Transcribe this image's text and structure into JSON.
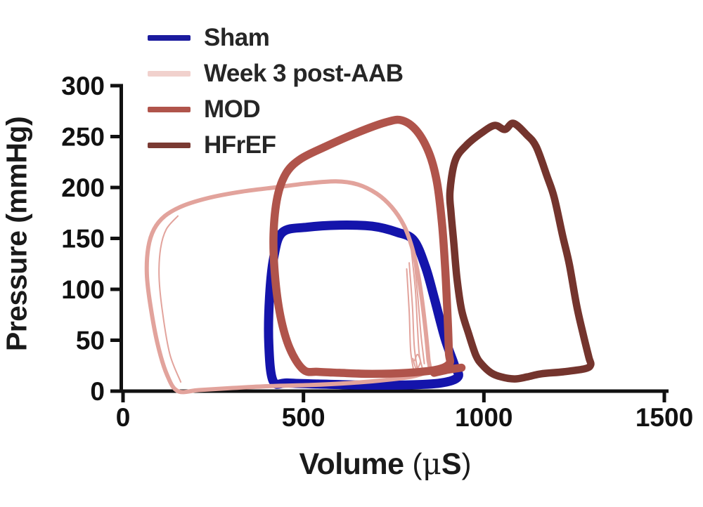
{
  "figure": {
    "background": "#ffffff",
    "text_color": "#1a1a1a",
    "axis_color": "#111111"
  },
  "labels": {
    "ylabel": "Pressure (mmHg)",
    "xlabel_name": "Volume",
    "xlabel_open": "(",
    "xlabel_mu": "μ",
    "xlabel_s": "S",
    "xlabel_close": ")"
  },
  "legend": {
    "position": "top-left",
    "items": [
      {
        "label": "Sham",
        "color": "#1b1b9e"
      },
      {
        "label": "Week 3 post-AAB",
        "color": "#f1d1cd"
      },
      {
        "label": "MOD",
        "color": "#b0544b"
      },
      {
        "label": "HFrEF",
        "color": "#7a3a33"
      }
    ]
  },
  "chart_data": {
    "type": "line",
    "subtype": "pressure-volume-loops",
    "title": "",
    "xlabel": "Volume (μS)",
    "ylabel": "Pressure (mmHg)",
    "xlim": [
      0,
      1500
    ],
    "ylim": [
      0,
      300
    ],
    "x_ticks": [
      0,
      500,
      1000,
      1500
    ],
    "y_ticks": [
      0,
      50,
      100,
      150,
      200,
      250,
      300
    ],
    "grid": false,
    "legend_position": "top-left",
    "series": [
      {
        "name": "Sham",
        "color": "#1414ab",
        "stroke_width": 13,
        "closed": true,
        "points": [
          [
            416,
            10
          ],
          [
            404,
            46
          ],
          [
            406,
            92
          ],
          [
            418,
            132
          ],
          [
            442,
            156
          ],
          [
            510,
            161
          ],
          [
            600,
            163
          ],
          [
            690,
            162
          ],
          [
            760,
            156
          ],
          [
            806,
            148
          ],
          [
            838,
            122
          ],
          [
            862,
            92
          ],
          [
            892,
            52
          ],
          [
            918,
            26
          ],
          [
            928,
            14
          ],
          [
            880,
            8
          ],
          [
            780,
            6
          ],
          [
            660,
            6
          ],
          [
            540,
            7
          ],
          [
            455,
            8
          ]
        ]
      },
      {
        "name": "Week 3 post-AAB",
        "color": "#e2a39c",
        "stroke_width": 6,
        "closed": true,
        "points": [
          [
            152,
            0
          ],
          [
            122,
            16
          ],
          [
            96,
            46
          ],
          [
            76,
            84
          ],
          [
            66,
            115
          ],
          [
            70,
            141
          ],
          [
            86,
            159
          ],
          [
            116,
            172
          ],
          [
            166,
            182
          ],
          [
            240,
            190
          ],
          [
            330,
            196
          ],
          [
            420,
            200
          ],
          [
            510,
            204
          ],
          [
            590,
            206
          ],
          [
            650,
            203
          ],
          [
            703,
            194
          ],
          [
            744,
            181
          ],
          [
            778,
            163
          ],
          [
            801,
            141
          ],
          [
            817,
            116
          ],
          [
            829,
            88
          ],
          [
            839,
            58
          ],
          [
            846,
            32
          ],
          [
            847,
            21
          ],
          [
            810,
            15
          ],
          [
            730,
            11
          ],
          [
            630,
            8
          ],
          [
            520,
            6
          ],
          [
            410,
            5
          ],
          [
            300,
            3
          ],
          [
            210,
            1
          ]
        ],
        "sub_stroke_width": 2,
        "sub_strokes": [
          [
            [
              799,
              138
            ],
            [
              810,
              100
            ],
            [
              816,
              62
            ],
            [
              821,
              36
            ],
            [
              829,
              23
            ]
          ],
          [
            [
              806,
              132
            ],
            [
              817,
              92
            ],
            [
              826,
              54
            ],
            [
              835,
              27
            ]
          ],
          [
            [
              793,
              126
            ],
            [
              802,
              83
            ],
            [
              807,
              44
            ],
            [
              815,
              23
            ]
          ],
          [
            [
              786,
              120
            ],
            [
              793,
              78
            ],
            [
              797,
              40
            ],
            [
              805,
              21
            ]
          ],
          [
            [
              160,
              9
            ],
            [
              130,
              36
            ],
            [
              110,
              76
            ],
            [
              100,
              112
            ],
            [
              104,
              140
            ],
            [
              120,
              159
            ],
            [
              152,
              172
            ]
          ],
          [
            [
              803,
              32
            ],
            [
              813,
              22
            ],
            [
              824,
              29
            ],
            [
              816,
              36
            ],
            [
              808,
              30
            ]
          ]
        ]
      },
      {
        "name": "MOD",
        "color": "#b0544b",
        "stroke_width": 11.5,
        "closed": true,
        "points": [
          [
            500,
            21
          ],
          [
            462,
            42
          ],
          [
            436,
            74
          ],
          [
            421,
            114
          ],
          [
            417,
            154
          ],
          [
            428,
            191
          ],
          [
            452,
            214
          ],
          [
            492,
            228
          ],
          [
            560,
            240
          ],
          [
            650,
            254
          ],
          [
            728,
            264
          ],
          [
            772,
            266
          ],
          [
            813,
            256
          ],
          [
            848,
            234
          ],
          [
            870,
            205
          ],
          [
            884,
            164
          ],
          [
            893,
            119
          ],
          [
            900,
            68
          ],
          [
            903,
            38
          ],
          [
            904,
            27
          ],
          [
            868,
            21
          ],
          [
            790,
            18
          ],
          [
            690,
            17
          ],
          [
            600,
            18
          ],
          [
            540,
            19
          ]
        ],
        "sub_stroke_width": 11.5,
        "sub_strokes": [
          [
            [
              862,
              18
            ],
            [
              900,
              21
            ],
            [
              938,
              23
            ]
          ]
        ]
      },
      {
        "name": "HFrEF",
        "color": "#74342d",
        "stroke_width": 10.5,
        "closed": true,
        "points": [
          [
            906,
            196
          ],
          [
            920,
            226
          ],
          [
            950,
            241
          ],
          [
            995,
            254
          ],
          [
            1030,
            261
          ],
          [
            1058,
            257
          ],
          [
            1082,
            263
          ],
          [
            1118,
            252
          ],
          [
            1145,
            240
          ],
          [
            1175,
            211
          ],
          [
            1195,
            190
          ],
          [
            1218,
            153
          ],
          [
            1237,
            124
          ],
          [
            1257,
            84
          ],
          [
            1275,
            56
          ],
          [
            1291,
            33
          ],
          [
            1296,
            26
          ],
          [
            1280,
            22
          ],
          [
            1220,
            19
          ],
          [
            1158,
            17
          ],
          [
            1120,
            14
          ],
          [
            1085,
            12
          ],
          [
            1048,
            14
          ],
          [
            1020,
            18
          ],
          [
            995,
            26
          ],
          [
            978,
            35
          ],
          [
            958,
            56
          ],
          [
            938,
            80
          ],
          [
            925,
            112
          ],
          [
            916,
            148
          ],
          [
            909,
            175
          ]
        ]
      }
    ]
  }
}
